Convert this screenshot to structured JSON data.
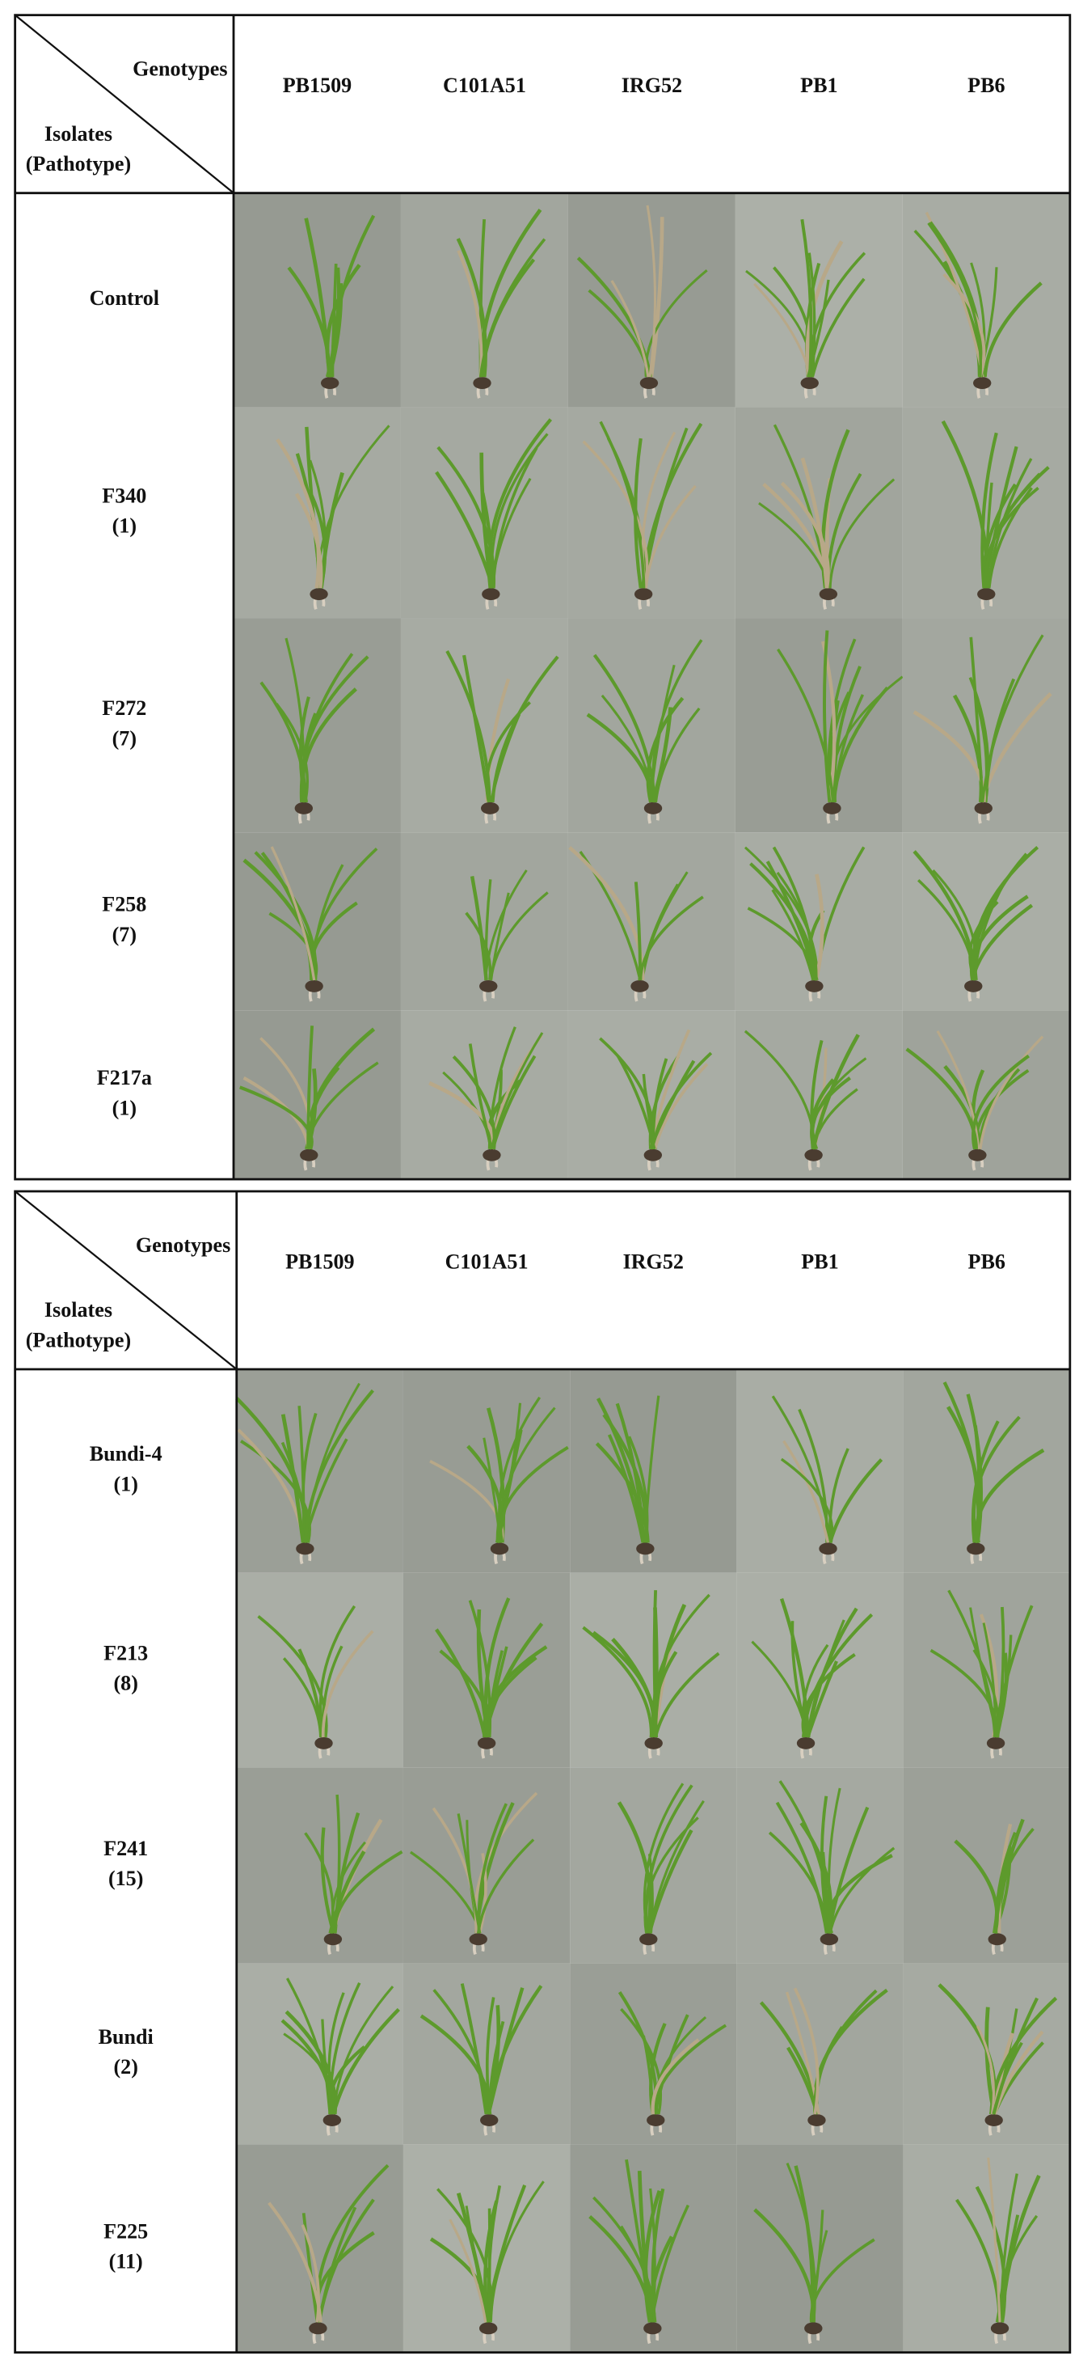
{
  "panels": [
    {
      "header": {
        "genotypes_label": "Genotypes",
        "isolates_label": "Isolates",
        "pathotype_label": "(Pathotype)",
        "columns": [
          "PB1509",
          "C101A51",
          "IRG52",
          "PB1",
          "PB6"
        ]
      },
      "rows": [
        {
          "isolate": "Control"
        },
        {
          "isolate": "F340",
          "pathotype": "(1)"
        },
        {
          "isolate": "F272",
          "pathotype": "(7)"
        },
        {
          "isolate": "F258",
          "pathotype": "(7)"
        },
        {
          "isolate": "F217a",
          "pathotype": "(1)"
        }
      ]
    },
    {
      "header": {
        "genotypes_label": "Genotypes",
        "isolates_label": "Isolates",
        "pathotype_label": "(Pathotype)",
        "columns": [
          "PB1509",
          "C101A51",
          "IRG52",
          "PB1",
          "PB6"
        ]
      },
      "rows": [
        {
          "isolate": "Bundi-4",
          "pathotype": "(1)"
        },
        {
          "isolate": "F213",
          "pathotype": "(8)"
        },
        {
          "isolate": "F241",
          "pathotype": "(15)"
        },
        {
          "isolate": "Bundi",
          "pathotype": "(2)"
        },
        {
          "isolate": "F225",
          "pathotype": "(11)"
        }
      ]
    }
  ]
}
